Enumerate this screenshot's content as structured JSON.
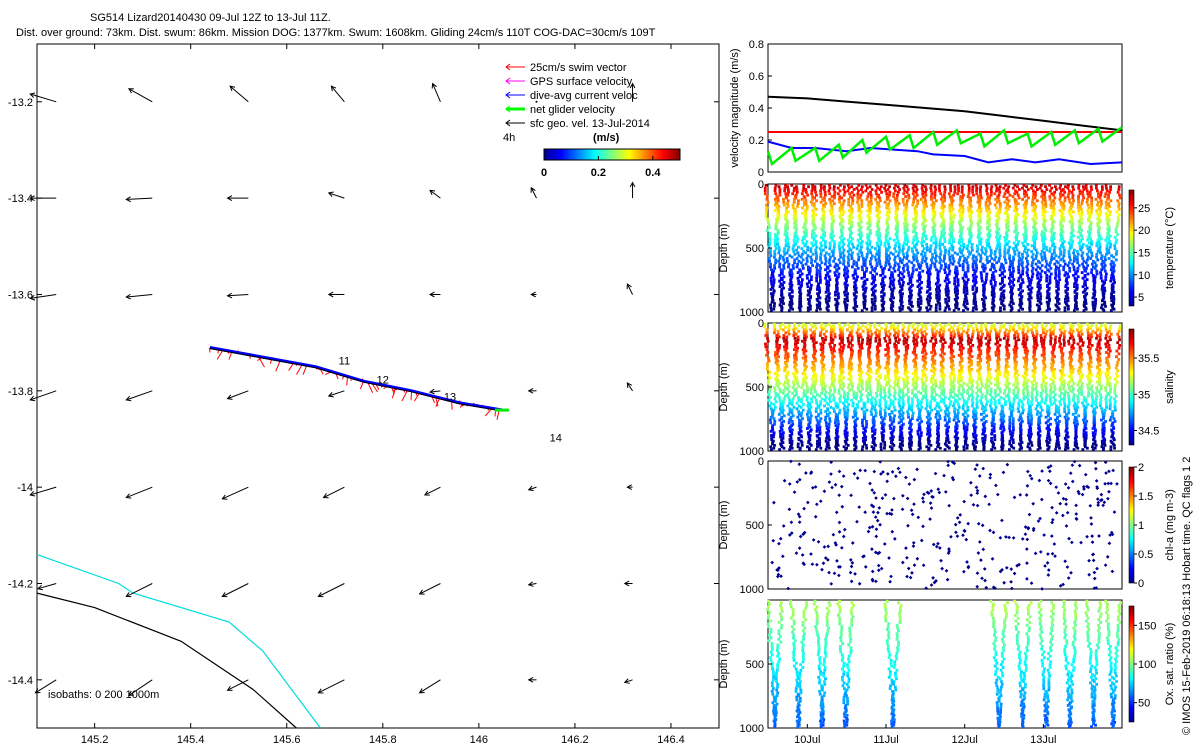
{
  "header": {
    "title": "SG514 Lizard20140430 09-Jul 12Z to 13-Jul 11Z.",
    "subtitle": "Dist. over ground: 73km. Dist. swum: 86km. Mission DOG: 1377km. Swum: 1608km. Gliding 24cm/s 110T COG-DAC=30cm/s 109T"
  },
  "side_text": "© IMOS 15-Feb-2019 06:18:13 Hobart time. QC flags 1  2",
  "chart_data": [
    {
      "type": "map",
      "x_ticks": [
        "145.2",
        "145.4",
        "145.6",
        "145.8",
        "146",
        "146.2",
        "146.4"
      ],
      "y_ticks": [
        "-13.2",
        "-13.4",
        "-13.6",
        "-13.8",
        "-14",
        "-14.2",
        "-14.4"
      ],
      "xlim": [
        145.08,
        146.5
      ],
      "ylim": [
        -14.5,
        -13.08
      ],
      "legend": {
        "placement": "top-right",
        "entries": [
          {
            "label": "25cm/s swim vector",
            "color": "#ff0000"
          },
          {
            "label": "GPS surface velocity",
            "color": "#ff00ff"
          },
          {
            "label": "dive-avg current veloc",
            "color": "#0000ff"
          },
          {
            "label": "net glider velocity",
            "color": "#00ff00"
          },
          {
            "label": "sfc geo. vel. 13-Jul-2014",
            "color": "#000000"
          }
        ]
      },
      "colorbar": {
        "label": "(m/s)",
        "ticks": [
          "0",
          "0.2",
          "0.4"
        ],
        "range": [
          0,
          0.5
        ]
      },
      "annotation_4h": "4h",
      "isobaths_text": "isobaths: 0   200  1000m",
      "day_labels": [
        {
          "text": "11",
          "lon": 145.72,
          "lat": -13.745
        },
        {
          "text": "12",
          "lon": 145.8,
          "lat": -13.785
        },
        {
          "text": "13",
          "lon": 145.94,
          "lat": -13.82
        },
        {
          "text": "14",
          "lon": 146.16,
          "lat": -13.905
        }
      ],
      "track": [
        [
          145.44,
          -13.71
        ],
        [
          145.55,
          -13.73
        ],
        [
          145.66,
          -13.75
        ],
        [
          145.76,
          -13.78
        ],
        [
          145.86,
          -13.8
        ],
        [
          145.96,
          -13.825
        ],
        [
          146.05,
          -13.84
        ]
      ],
      "grid_lon": [
        145.12,
        145.32,
        145.52,
        145.72,
        145.92,
        146.12,
        146.32
      ],
      "grid_lat": [
        -13.2,
        -13.4,
        -13.6,
        -13.8,
        -14.0,
        -14.2,
        -14.4
      ],
      "vectors": [
        [
          [
            -1,
            -0.3
          ],
          [
            -0.9,
            -0.5
          ],
          [
            -0.7,
            -0.6
          ],
          [
            -0.5,
            -0.6
          ],
          [
            -0.3,
            -0.7
          ],
          [
            0,
            0
          ],
          [
            0,
            -0.7
          ]
        ],
        [
          [
            -1,
            0
          ],
          [
            -1,
            0.05
          ],
          [
            -0.8,
            0
          ],
          [
            -0.6,
            -0.2
          ],
          [
            -0.4,
            -0.3
          ],
          [
            -0.2,
            -0.4
          ],
          [
            0,
            -0.6
          ]
        ],
        [
          [
            -1,
            0.15
          ],
          [
            -1,
            0.1
          ],
          [
            -0.8,
            0.05
          ],
          [
            -0.6,
            0
          ],
          [
            -0.4,
            0
          ],
          [
            -0.2,
            0
          ],
          [
            -0.2,
            -0.4
          ]
        ],
        [
          [
            -1,
            0.35
          ],
          [
            -1,
            0.35
          ],
          [
            -0.8,
            0.3
          ],
          [
            -0.6,
            0.2
          ],
          [
            -0.4,
            0.05
          ],
          [
            -0.3,
            0
          ],
          [
            -0.2,
            -0.3
          ]
        ],
        [
          [
            -1,
            0.3
          ],
          [
            -1,
            0.4
          ],
          [
            -1,
            0.45
          ],
          [
            -0.8,
            0.4
          ],
          [
            -0.6,
            0.3
          ],
          [
            -0.3,
            0.1
          ],
          [
            -0.2,
            0
          ]
        ],
        [
          [
            -0.7,
            0.2
          ],
          [
            -1,
            0.5
          ],
          [
            -1,
            0.5
          ],
          [
            -1,
            0.5
          ],
          [
            -0.8,
            0.4
          ],
          [
            -0.3,
            0.05
          ],
          [
            -0.3,
            0
          ]
        ],
        [
          [
            -0.8,
            0.5
          ],
          [
            -0.9,
            0.6
          ],
          [
            -0.8,
            0.4
          ],
          [
            -1,
            0.5
          ],
          [
            -0.8,
            0.5
          ],
          [
            -0.3,
            0
          ],
          [
            -0.3,
            0.1
          ]
        ]
      ],
      "coastlines": [
        {
          "color": "#00dddd",
          "points": [
            [
              145.08,
              -14.14
            ],
            [
              145.25,
              -14.2
            ],
            [
              145.28,
              -14.22
            ],
            [
              145.48,
              -14.28
            ],
            [
              145.55,
              -14.34
            ],
            [
              145.64,
              -14.46
            ],
            [
              145.67,
              -14.5
            ]
          ]
        },
        {
          "color": "#000000",
          "points": [
            [
              145.08,
              -14.22
            ],
            [
              145.2,
              -14.25
            ],
            [
              145.38,
              -14.32
            ],
            [
              145.53,
              -14.42
            ],
            [
              145.62,
              -14.5
            ]
          ]
        }
      ]
    },
    {
      "type": "line",
      "ylabel": "velocity magnitude (m/s)",
      "ylim": [
        0,
        0.8
      ],
      "y_ticks": [
        "0",
        "0.2",
        "0.4",
        "0.6",
        "0.8"
      ],
      "xlim": [
        0,
        4.5
      ],
      "series": [
        {
          "color": "#000000",
          "x": [
            0,
            0.5,
            1,
            1.5,
            2,
            2.5,
            3,
            3.5,
            4,
            4.5
          ],
          "values": [
            0.47,
            0.46,
            0.44,
            0.42,
            0.4,
            0.38,
            0.35,
            0.32,
            0.29,
            0.26
          ]
        },
        {
          "color": "#ff0000",
          "x": [
            0,
            4.5
          ],
          "values": [
            0.25,
            0.25
          ]
        },
        {
          "color": "#0000ff",
          "x": [
            0,
            0.3,
            0.6,
            1,
            1.3,
            1.6,
            1.9,
            2.1,
            2.5,
            2.8,
            3.1,
            3.4,
            3.7,
            4.1,
            4.5
          ],
          "values": [
            0.19,
            0.15,
            0.15,
            0.13,
            0.15,
            0.14,
            0.13,
            0.11,
            0.1,
            0.06,
            0.08,
            0.06,
            0.08,
            0.05,
            0.06
          ]
        },
        {
          "color": "#00ee00",
          "x": [
            0,
            0.3,
            0.6,
            0.9,
            1.2,
            1.5,
            1.8,
            2.1,
            2.4,
            2.7,
            3.0,
            3.3,
            3.6,
            3.9,
            4.2,
            4.5
          ],
          "values": [
            0.13,
            0.15,
            0.15,
            0.17,
            0.2,
            0.22,
            0.23,
            0.25,
            0.26,
            0.24,
            0.26,
            0.24,
            0.25,
            0.26,
            0.27,
            0.28
          ]
        }
      ]
    },
    {
      "type": "scatter",
      "ylabel": "Depth (m)",
      "clabel": "temperature (°C)",
      "y_ticks": [
        "0",
        "500",
        "1000"
      ],
      "c_ticks": [
        "5",
        "10",
        "15",
        "20",
        "25"
      ],
      "crange": [
        3,
        29
      ],
      "ylim": [
        1000,
        0
      ],
      "n_profiles": 38
    },
    {
      "type": "scatter",
      "ylabel": "Depth (m)",
      "clabel": "salinity",
      "y_ticks": [
        "0",
        "500",
        "1000"
      ],
      "c_ticks": [
        "34.5",
        "35",
        "35.5"
      ],
      "crange": [
        34.3,
        35.9
      ],
      "ylim": [
        1000,
        0
      ],
      "n_profiles": 38
    },
    {
      "type": "scatter",
      "ylabel": "Depth (m)",
      "clabel": "chl-a (mg m-3)",
      "y_ticks": [
        "0",
        "500",
        "1000"
      ],
      "c_ticks": [
        "0",
        "0.5",
        "1",
        "1.5",
        "2"
      ],
      "crange": [
        0,
        2
      ],
      "ylim": [
        1000,
        0
      ],
      "n_profiles": 38
    },
    {
      "type": "scatter",
      "ylabel": "Depth (m)",
      "clabel": "Ox. sat. ratio (%)",
      "y_ticks": [
        "500",
        "1000"
      ],
      "c_ticks": [
        "50",
        "100",
        "150"
      ],
      "crange": [
        25,
        175
      ],
      "ylim": [
        1000,
        0
      ],
      "x_ticks": [
        "10Jul",
        "11Jul",
        "12Jul",
        "13Jul"
      ],
      "x_tick_pos": [
        0.5,
        1.5,
        2.5,
        3.5
      ],
      "xlim": [
        0,
        4.5
      ],
      "profile_days": [
        0.05,
        0.35,
        0.65,
        0.95,
        1.55,
        2.9,
        3.2,
        3.5,
        3.8,
        4.1,
        4.35
      ]
    }
  ]
}
